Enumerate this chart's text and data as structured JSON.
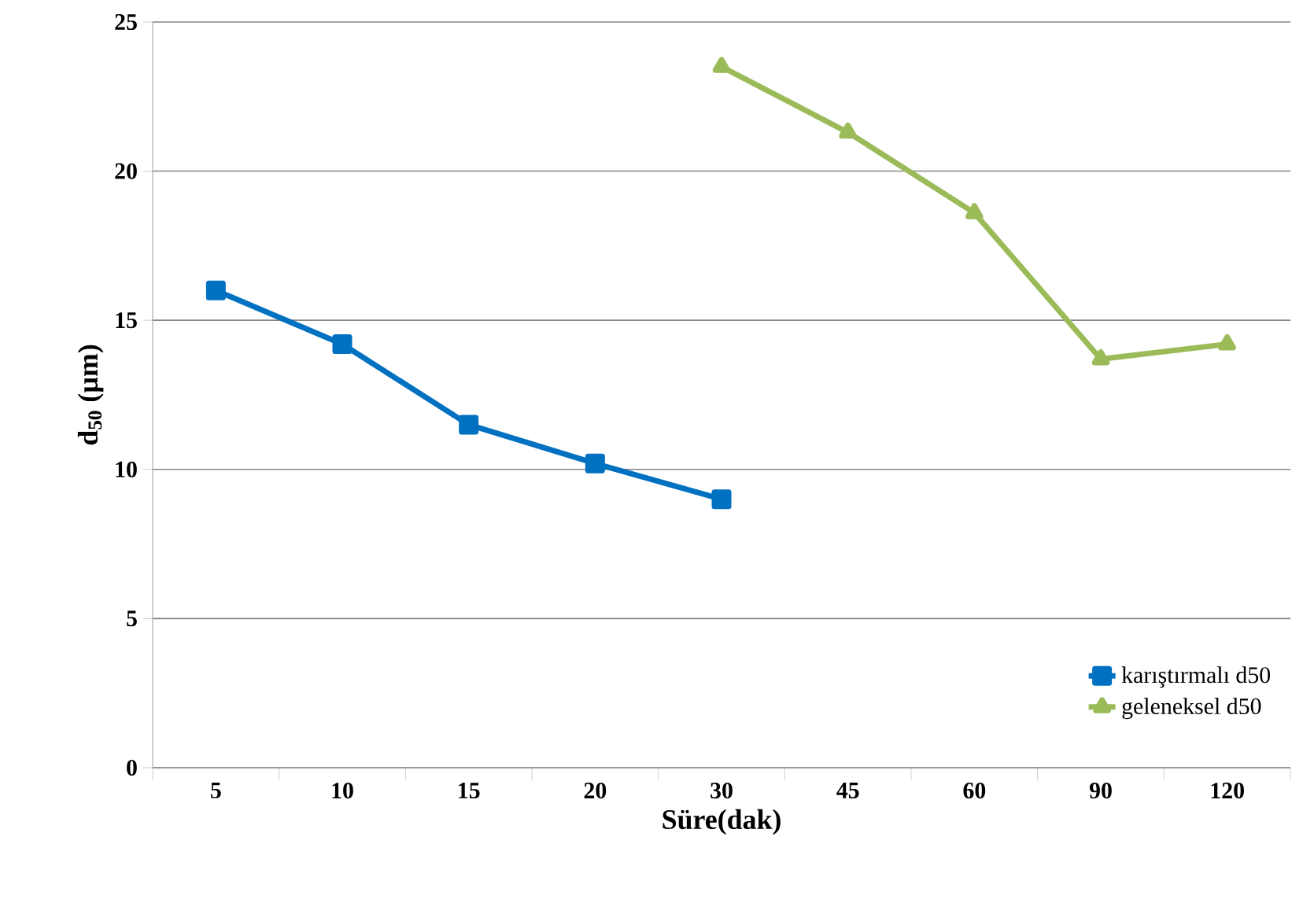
{
  "chart_data": {
    "type": "line",
    "xlabel": "Süre(dak)",
    "ylabel": "d$_{50}$ (µm)",
    "categories": [
      "5",
      "10",
      "15",
      "20",
      "30",
      "45",
      "60",
      "90",
      "120"
    ],
    "series": [
      {
        "name": "karıştırmalı d50",
        "color": "#0070c0",
        "marker": "square",
        "values": [
          16.0,
          14.2,
          11.5,
          10.2,
          9.0,
          null,
          null,
          null,
          null
        ]
      },
      {
        "name": "geleneksel d50",
        "color": "#9bbb59",
        "marker": "triangle",
        "values": [
          null,
          null,
          null,
          null,
          23.5,
          21.3,
          18.6,
          13.7,
          14.2
        ]
      }
    ],
    "ylim": [
      0,
      25
    ],
    "yticks": [
      0,
      5,
      10,
      15,
      20,
      25
    ],
    "grid": "y",
    "legend": "bottom right",
    "line_style": "solid"
  }
}
